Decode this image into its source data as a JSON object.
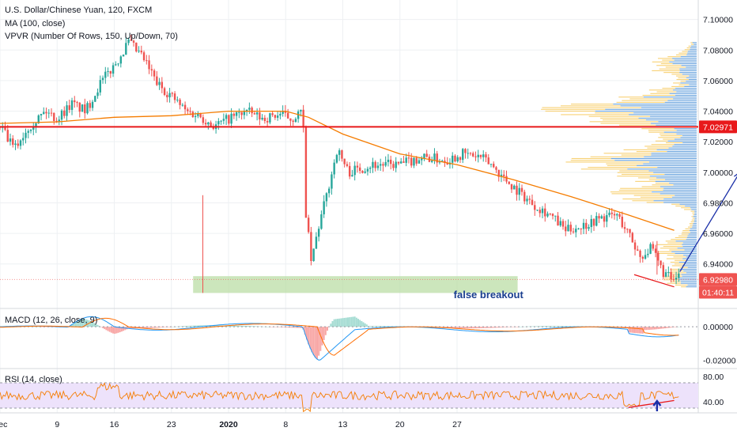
{
  "header": {
    "title": "U.S. Dollar/Chinese Yuan, 120, FXCM",
    "ma_label": "MA (100, close)",
    "vpvr_label": "VPVR (Number Of Rows, 150, Up/Down, 70)",
    "macd_label": "MACD (12, 26, close, 9)",
    "rsi_label": "RSI (14, close)"
  },
  "colors": {
    "up": "#26a69a",
    "down": "#ef5350",
    "ma": "#f57c00",
    "resistance": "#e8191b",
    "drawing": "#1a2fa8",
    "support_zone": "#b7dca0",
    "vp_up": "#4a8fd6",
    "vp_down": "#f7c95b",
    "rsi_band": "#ede2fb",
    "macd_line": "#2196f3",
    "signal_line": "#ff6d00"
  },
  "chart_data": {
    "type": "candlestick",
    "symbol": "USD/CNH",
    "timeframe": "120",
    "y_ticks": [
      "7.10000",
      "7.08000",
      "7.06000",
      "7.04000",
      "7.02000",
      "7.00000",
      "6.98000",
      "6.96000",
      "6.94000"
    ],
    "ylim": [
      6.915,
      7.105
    ],
    "x_ticks": [
      "Dec",
      "9",
      "16",
      "23",
      "2020",
      "8",
      "13",
      "20",
      "27"
    ],
    "price_tags": {
      "resistance": "7.02971",
      "last_price": "6.92980",
      "countdown": "01:40:11"
    },
    "resistance_level": 7.02971,
    "support_zone": [
      6.921,
      6.932
    ],
    "ohlc_path": [
      [
        0,
        7.03
      ],
      [
        0.25,
        7.015
      ],
      [
        0.5,
        7.03
      ],
      [
        0.8,
        7.04
      ],
      [
        1.0,
        7.035
      ],
      [
        1.25,
        7.045
      ],
      [
        1.5,
        7.04
      ],
      [
        1.75,
        7.058
      ],
      [
        2.0,
        7.07
      ],
      [
        2.25,
        7.085
      ],
      [
        2.5,
        7.075
      ],
      [
        2.75,
        7.058
      ],
      [
        3.0,
        7.05
      ],
      [
        3.25,
        7.04
      ],
      [
        3.5,
        7.037
      ],
      [
        3.75,
        7.03
      ],
      [
        4.0,
        7.035
      ],
      [
        4.3,
        7.04
      ],
      [
        4.6,
        7.035
      ],
      [
        4.9,
        7.038
      ],
      [
        5.1,
        7.035
      ],
      [
        5.3,
        7.04
      ],
      [
        5.35,
        6.975
      ],
      [
        5.45,
        6.94
      ],
      [
        5.55,
        6.96
      ],
      [
        5.75,
        6.99
      ],
      [
        5.9,
        7.015
      ],
      [
        6.1,
        7.0
      ],
      [
        6.5,
        7.005
      ],
      [
        7.0,
        7.005
      ],
      [
        7.4,
        7.01
      ],
      [
        7.8,
        7.008
      ],
      [
        8.1,
        7.012
      ],
      [
        8.4,
        7.01
      ],
      [
        8.6,
        7.005
      ],
      [
        8.8,
        6.997
      ],
      [
        9.0,
        6.99
      ],
      [
        9.3,
        6.98
      ],
      [
        9.6,
        6.973
      ],
      [
        9.9,
        6.962
      ],
      [
        10.2,
        6.965
      ],
      [
        10.5,
        6.97
      ],
      [
        10.8,
        6.972
      ],
      [
        11.0,
        6.96
      ],
      [
        11.2,
        6.945
      ],
      [
        11.4,
        6.95
      ],
      [
        11.6,
        6.935
      ],
      [
        11.8,
        6.928
      ],
      [
        11.9,
        6.933
      ]
    ],
    "ma_path": [
      [
        0,
        7.032
      ],
      [
        1,
        7.033
      ],
      [
        2,
        7.036
      ],
      [
        3,
        7.037
      ],
      [
        4,
        7.04
      ],
      [
        5,
        7.04
      ],
      [
        5.4,
        7.036
      ],
      [
        6,
        7.025
      ],
      [
        7,
        7.012
      ],
      [
        8,
        7.005
      ],
      [
        9,
        6.995
      ],
      [
        10,
        6.984
      ],
      [
        11,
        6.972
      ],
      [
        11.8,
        6.962
      ]
    ],
    "annotation": "false breakout",
    "projection": [
      [
        11.9,
        6.935
      ],
      [
        12.95,
        7.0
      ],
      [
        13.5,
        6.97
      ],
      [
        13.85,
        6.97
      ],
      [
        14.25,
        7.025
      ]
    ],
    "divergence_price": [
      [
        11.1,
        6.933
      ],
      [
        11.8,
        6.925
      ]
    ],
    "macd": {
      "y_ticks": [
        "0.00000",
        "-0.02000"
      ],
      "ylim": [
        -0.024,
        0.01
      ]
    },
    "rsi": {
      "y_ticks": [
        "80.00",
        "40.00"
      ],
      "ylim": [
        25,
        90
      ],
      "band": [
        30,
        70
      ]
    }
  }
}
